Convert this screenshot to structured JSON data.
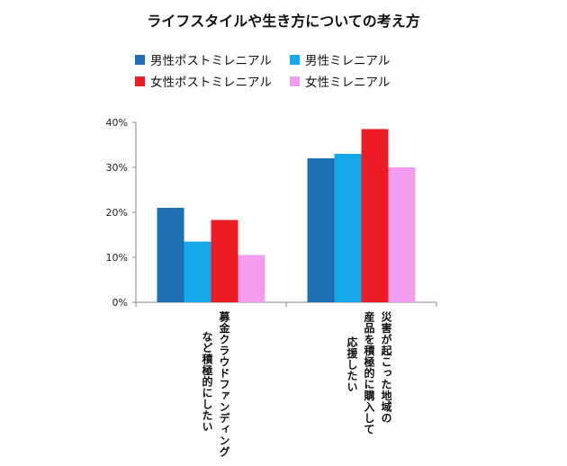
{
  "chart_data": {
    "type": "bar",
    "title": "ライフスタイルや生き方についての考え方",
    "categories": [
      [
        "募金クラウドファンディング",
        "など積極的にしたい"
      ],
      [
        "災害が起こった地域の",
        "産品を積極的に購入して",
        "応援したい"
      ]
    ],
    "series": [
      {
        "name": "男性ポストミレニアル",
        "color": "#1e6eb4",
        "values": [
          21,
          32
        ]
      },
      {
        "name": "男性ミレニアル",
        "color": "#17a8ea",
        "values": [
          13.5,
          33
        ]
      },
      {
        "name": "女性ポストミレニアル",
        "color": "#ec1c24",
        "values": [
          18.3,
          38.5
        ]
      },
      {
        "name": "女性ミレニアル",
        "color": "#f29cf0",
        "values": [
          10.5,
          30
        ]
      }
    ],
    "ylim": [
      0,
      40
    ],
    "yticks": [
      0,
      10,
      20,
      30,
      40
    ],
    "ytick_labels": [
      "0%",
      "10%",
      "20%",
      "30%",
      "40%"
    ],
    "xlabel": "",
    "ylabel": "",
    "legend_position": "top"
  }
}
